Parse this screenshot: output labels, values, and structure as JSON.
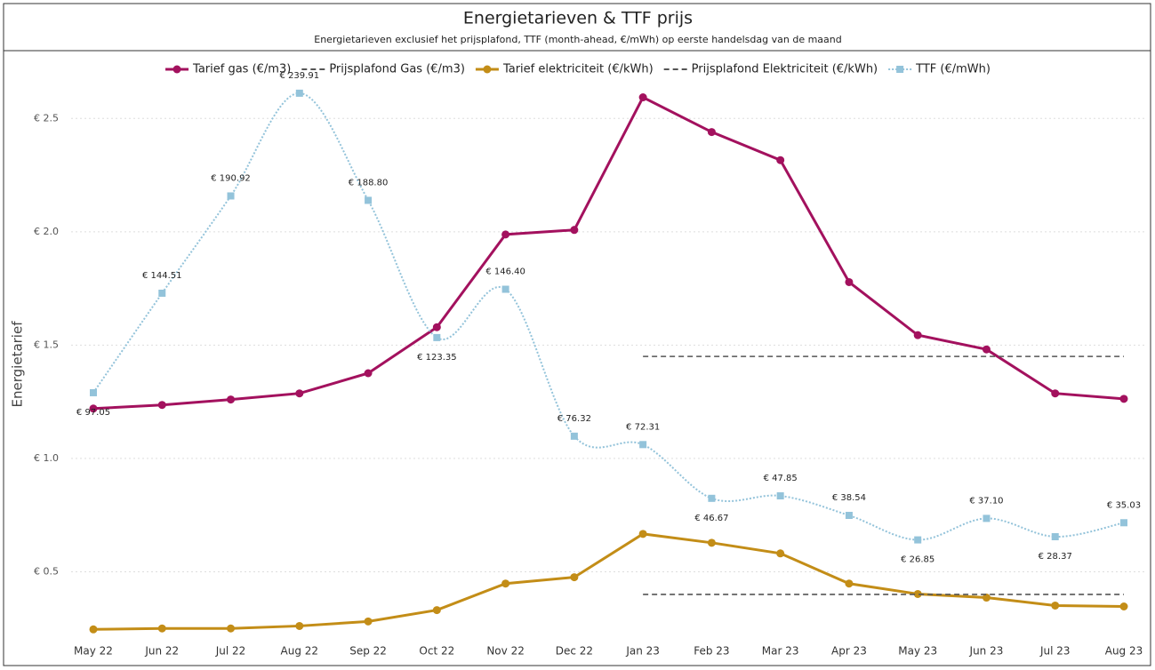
{
  "chart_data": {
    "type": "line",
    "title": "Energietarieven & TTF prijs",
    "subtitle": "Energietarieven exclusief het prijsplafond, TTF (month-ahead, €/mWh) op eerste handelsdag van de maand",
    "y_label": "Energietarief",
    "categories": [
      "May 22",
      "Jun 22",
      "Jul 22",
      "Aug 22",
      "Sep 22",
      "Oct 22",
      "Nov 22",
      "Dec 22",
      "Jan 23",
      "Feb 23",
      "Mar 23",
      "Apr 23",
      "May 23",
      "Jun 23",
      "Jul 23",
      "Aug 23"
    ],
    "ylim": [
      0.2,
      2.65
    ],
    "yticks": [
      {
        "value": 0.5,
        "label": "€ 0.5"
      },
      {
        "value": 1.0,
        "label": "€ 1.0"
      },
      {
        "value": 1.5,
        "label": "€ 1.5"
      },
      {
        "value": 2.0,
        "label": "€ 2.0"
      },
      {
        "value": 2.5,
        "label": "€ 2.5"
      }
    ],
    "y2lim": [
      -20.8,
      244.1
    ],
    "grid": true,
    "legend": "top",
    "series": [
      {
        "name": "Tarief gas (€/m3)",
        "color": "#a3115e",
        "dash": "solid",
        "marker": "circle",
        "values": [
          1.22,
          1.236,
          1.26,
          1.287,
          1.376,
          1.579,
          1.988,
          2.008,
          2.593,
          2.44,
          2.316,
          1.778,
          1.544,
          1.481,
          1.287,
          1.263
        ]
      },
      {
        "name": "Prijsplafond Gas (€/m3)",
        "color": "#555555",
        "dash": "dashed",
        "marker": "none",
        "values": [
          null,
          null,
          null,
          null,
          null,
          null,
          null,
          null,
          1.45,
          1.45,
          1.45,
          1.45,
          1.45,
          1.45,
          1.45,
          1.45
        ]
      },
      {
        "name": "Tarief elektriciteit (€/kWh)",
        "color": "#c38d17",
        "dash": "solid",
        "marker": "circle",
        "values": [
          0.246,
          0.25,
          0.25,
          0.261,
          0.281,
          0.331,
          0.448,
          0.476,
          0.667,
          0.628,
          0.581,
          0.448,
          0.402,
          0.386,
          0.351,
          0.347
        ]
      },
      {
        "name": "Prijsplafond Elektriciteit (€/kWh)",
        "color": "#555555",
        "dash": "dashed",
        "marker": "none",
        "values": [
          null,
          null,
          null,
          null,
          null,
          null,
          null,
          null,
          0.4,
          0.4,
          0.4,
          0.4,
          0.4,
          0.4,
          0.4,
          0.4
        ]
      },
      {
        "name": "TTF (€/mWh)",
        "color": "#93c3da",
        "dash": "dotted",
        "marker": "square",
        "smooth": true,
        "axis": "y2",
        "values": [
          97.05,
          144.51,
          190.92,
          239.91,
          188.8,
          123.35,
          146.4,
          76.32,
          72.31,
          46.67,
          47.85,
          38.54,
          26.85,
          37.1,
          28.37,
          35.03
        ],
        "value_labels": [
          "€ 97.05",
          "€ 144.51",
          "€ 190.92",
          "€ 239.91",
          "€ 188.80",
          "€ 123.35",
          "€ 146.40",
          "€ 76.32",
          "€ 72.31",
          "€ 46.67",
          "€ 47.85",
          "€ 38.54",
          "€ 26.85",
          "€ 37.10",
          "€ 28.37",
          "€ 35.03"
        ]
      }
    ]
  }
}
